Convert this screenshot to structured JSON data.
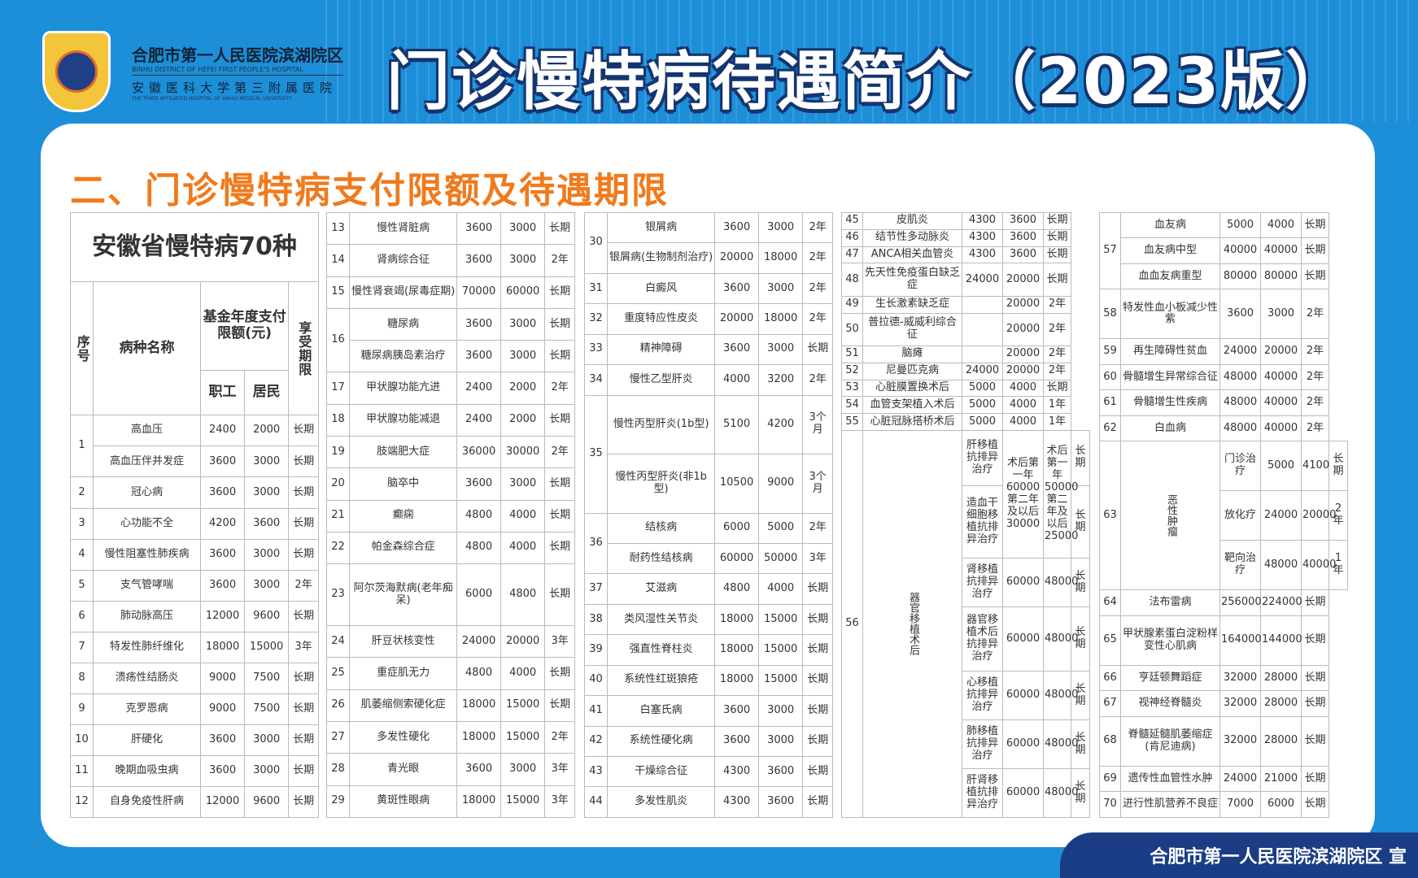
{
  "header": {
    "hospital_name": "合肥市第一人民医院滨湖院区",
    "hospital_name_en": "BINHU DISTRICT OF HEFEI FIRST PEOPLE'S HOSPITAL",
    "affiliation": "安徽医科大学第三附属医院",
    "affiliation_en": "THE THIRD AFFILIATED HOSPITAL OF ANHUI MEDICAL UNIVERSITY",
    "logo_text": "合肥市第一人民医院",
    "title": "门诊慢特病待遇简介（2023版）"
  },
  "section_title": "二、门诊慢特病支付限额及待遇期限",
  "table_title": "安徽省慢特病70种",
  "columns": {
    "no": "序号",
    "name": "病种名称",
    "limit": "基金年度支付限额(元)",
    "employee": "职工",
    "resident": "居民",
    "period": "享受期限"
  },
  "panels": [
    [
      {
        "no": "1",
        "items": [
          {
            "name": "高血压",
            "emp": "2400",
            "res": "2000",
            "period": "长期"
          },
          {
            "name": "高血压伴并发症",
            "emp": "3600",
            "res": "3000",
            "period": "长期"
          }
        ]
      },
      {
        "no": "2",
        "name": "冠心病",
        "emp": "3600",
        "res": "3000",
        "period": "长期"
      },
      {
        "no": "3",
        "name": "心功能不全",
        "emp": "4200",
        "res": "3600",
        "period": "长期"
      },
      {
        "no": "4",
        "name": "慢性阻塞性肺疾病",
        "emp": "3600",
        "res": "3000",
        "period": "长期"
      },
      {
        "no": "5",
        "name": "支气管哮喘",
        "emp": "3600",
        "res": "3000",
        "period": "2年"
      },
      {
        "no": "6",
        "name": "肺动脉高压",
        "emp": "12000",
        "res": "9600",
        "period": "长期"
      },
      {
        "no": "7",
        "name": "特发性肺纤维化",
        "emp": "18000",
        "res": "15000",
        "period": "3年"
      },
      {
        "no": "8",
        "name": "溃疡性结肠炎",
        "emp": "9000",
        "res": "7500",
        "period": "长期"
      },
      {
        "no": "9",
        "name": "克罗恩病",
        "emp": "9000",
        "res": "7500",
        "period": "长期"
      },
      {
        "no": "10",
        "name": "肝硬化",
        "emp": "3600",
        "res": "3000",
        "period": "长期"
      },
      {
        "no": "11",
        "name": "晚期血吸虫病",
        "emp": "3600",
        "res": "3000",
        "period": "长期"
      },
      {
        "no": "12",
        "name": "自身免疫性肝病",
        "emp": "12000",
        "res": "9600",
        "period": "长期"
      }
    ],
    [
      {
        "no": "13",
        "name": "慢性肾脏病",
        "emp": "3600",
        "res": "3000",
        "period": "长期"
      },
      {
        "no": "14",
        "name": "肾病综合征",
        "emp": "3600",
        "res": "3000",
        "period": "2年"
      },
      {
        "no": "15",
        "name": "慢性肾衰竭(尿毒症期)",
        "emp": "70000",
        "res": "60000",
        "period": "长期"
      },
      {
        "no": "16",
        "items": [
          {
            "name": "糖尿病",
            "emp": "3600",
            "res": "3000",
            "period": "长期"
          },
          {
            "name": "糖尿病胰岛素治疗",
            "emp": "3600",
            "res": "3000",
            "period": "长期"
          }
        ]
      },
      {
        "no": "17",
        "name": "甲状腺功能亢进",
        "emp": "2400",
        "res": "2000",
        "period": "2年"
      },
      {
        "no": "18",
        "name": "甲状腺功能减退",
        "emp": "2400",
        "res": "2000",
        "period": "长期"
      },
      {
        "no": "19",
        "name": "肢端肥大症",
        "emp": "36000",
        "res": "30000",
        "period": "2年"
      },
      {
        "no": "20",
        "name": "脑卒中",
        "emp": "3600",
        "res": "3000",
        "period": "长期"
      },
      {
        "no": "21",
        "name": "癫痫",
        "emp": "4800",
        "res": "4000",
        "period": "长期"
      },
      {
        "no": "22",
        "name": "帕金森综合症",
        "emp": "4800",
        "res": "4000",
        "period": "长期"
      },
      {
        "no": "23",
        "name": "阿尔茨海默病(老年痴呆)",
        "emp": "6000",
        "res": "4800",
        "period": "长期"
      },
      {
        "no": "24",
        "name": "肝豆状核变性",
        "emp": "24000",
        "res": "20000",
        "period": "3年"
      },
      {
        "no": "25",
        "name": "重症肌无力",
        "emp": "4800",
        "res": "4000",
        "period": "长期"
      },
      {
        "no": "26",
        "name": "肌萎缩侧索硬化症",
        "emp": "18000",
        "res": "15000",
        "period": "长期"
      },
      {
        "no": "27",
        "name": "多发性硬化",
        "emp": "18000",
        "res": "15000",
        "period": "2年"
      },
      {
        "no": "28",
        "name": "青光眼",
        "emp": "3600",
        "res": "3000",
        "period": "3年"
      },
      {
        "no": "29",
        "name": "黄斑性眼病",
        "emp": "18000",
        "res": "15000",
        "period": "3年"
      }
    ],
    [
      {
        "no": "30",
        "items": [
          {
            "name": "银屑病",
            "emp": "3600",
            "res": "3000",
            "period": "2年"
          },
          {
            "name": "银屑病(生物制剂治疗)",
            "emp": "20000",
            "res": "18000",
            "period": "2年"
          }
        ]
      },
      {
        "no": "31",
        "name": "白癜风",
        "emp": "3600",
        "res": "3000",
        "period": "2年"
      },
      {
        "no": "32",
        "name": "重度特应性皮炎",
        "emp": "20000",
        "res": "18000",
        "period": "2年"
      },
      {
        "no": "33",
        "name": "精神障碍",
        "emp": "3600",
        "res": "3000",
        "period": "长期"
      },
      {
        "no": "34",
        "name": "慢性乙型肝炎",
        "emp": "4000",
        "res": "3200",
        "period": "2年"
      },
      {
        "no": "35",
        "items": [
          {
            "name": "慢性丙型肝炎(1b型)",
            "emp": "5100",
            "res": "4200",
            "period": "3个月"
          },
          {
            "name": "慢性丙型肝炎(非1b型)",
            "emp": "10500",
            "res": "9000",
            "period": "3个月"
          }
        ]
      },
      {
        "no": "36",
        "items": [
          {
            "name": "结核病",
            "emp": "6000",
            "res": "5000",
            "period": "2年"
          },
          {
            "name": "耐药性结核病",
            "emp": "60000",
            "res": "50000",
            "period": "3年"
          }
        ]
      },
      {
        "no": "37",
        "name": "艾滋病",
        "emp": "4800",
        "res": "4000",
        "period": "长期"
      },
      {
        "no": "38",
        "name": "类风湿性关节炎",
        "emp": "18000",
        "res": "15000",
        "period": "长期"
      },
      {
        "no": "39",
        "name": "强直性脊柱炎",
        "emp": "18000",
        "res": "15000",
        "period": "长期"
      },
      {
        "no": "40",
        "name": "系统性红斑狼疮",
        "emp": "18000",
        "res": "15000",
        "period": "长期"
      },
      {
        "no": "41",
        "name": "白塞氏病",
        "emp": "3600",
        "res": "3000",
        "period": "长期"
      },
      {
        "no": "42",
        "name": "系统性硬化病",
        "emp": "3600",
        "res": "3000",
        "period": "长期"
      },
      {
        "no": "43",
        "name": "干燥综合征",
        "emp": "4300",
        "res": "3600",
        "period": "长期"
      },
      {
        "no": "44",
        "name": "多发性肌炎",
        "emp": "4300",
        "res": "3600",
        "period": "长期"
      }
    ],
    [
      {
        "no": "45",
        "name": "皮肌炎",
        "emp": "4300",
        "res": "3600",
        "period": "长期"
      },
      {
        "no": "46",
        "name": "结节性多动脉炎",
        "emp": "4300",
        "res": "3600",
        "period": "长期"
      },
      {
        "no": "47",
        "name": "ANCA相关血管炎",
        "emp": "4300",
        "res": "3600",
        "period": "长期"
      },
      {
        "no": "48",
        "name": "先天性免疫蛋白缺乏症",
        "emp": "24000",
        "res": "20000",
        "period": "长期"
      },
      {
        "no": "49",
        "name": "生长激素缺乏症",
        "emp": "",
        "res": "20000",
        "period": "2年"
      },
      {
        "no": "50",
        "name": "普拉德-威威利综合征",
        "emp": "",
        "res": "20000",
        "period": "2年"
      },
      {
        "no": "51",
        "name": "脑瘫",
        "emp": "",
        "res": "20000",
        "period": "2年"
      },
      {
        "no": "52",
        "name": "尼曼匹克病",
        "emp": "24000",
        "res": "20000",
        "period": "2年"
      },
      {
        "no": "53",
        "name": "心脏膜置换术后",
        "emp": "5000",
        "res": "4000",
        "period": "长期"
      },
      {
        "no": "54",
        "name": "血管支架植入术后",
        "emp": "5000",
        "res": "4000",
        "period": "1年"
      },
      {
        "no": "55",
        "name": "心脏冠脉搭桥术后",
        "emp": "5000",
        "res": "4000",
        "period": "1年"
      },
      {
        "no": "56",
        "group": "器官移植术后",
        "items": [
          {
            "name": "肝移植抗排异治疗",
            "emp": "术后第一年60000第二年及以后30000",
            "res": "术后第一年50000第二年及以后25000",
            "period": "长期"
          },
          {
            "name": "造血干细胞移植抗排异治疗",
            "emp": null,
            "res": null,
            "period": "长期"
          },
          {
            "name": "肾移植抗排异治疗",
            "emp": "60000",
            "res": "48000",
            "period": "长期"
          },
          {
            "name": "器官移植术后抗排异治疗",
            "emp": "60000",
            "res": "48000",
            "period": "长期"
          },
          {
            "name": "心移植抗排异治疗",
            "emp": "60000",
            "res": "48000",
            "period": "长期"
          },
          {
            "name": "肺移植抗排异治疗",
            "emp": "60000",
            "res": "48000",
            "period": "长期"
          },
          {
            "name": "肝肾移植抗排异治疗",
            "emp": "60000",
            "res": "48000",
            "period": "长期"
          }
        ]
      }
    ],
    [
      {
        "no": "57",
        "items": [
          {
            "name": "血友病",
            "emp": "5000",
            "res": "4000",
            "period": "长期"
          },
          {
            "name": "血友病中型",
            "emp": "40000",
            "res": "40000",
            "period": "长期"
          },
          {
            "name": "血血友病重型",
            "emp": "80000",
            "res": "80000",
            "period": "长期"
          }
        ]
      },
      {
        "no": "58",
        "name": "特发性血小板减少性紫",
        "emp": "3600",
        "res": "3000",
        "period": "2年"
      },
      {
        "no": "59",
        "name": "再生障碍性贫血",
        "emp": "24000",
        "res": "20000",
        "period": "2年"
      },
      {
        "no": "60",
        "name": "骨髓增生异常综合征",
        "emp": "48000",
        "res": "40000",
        "period": "2年"
      },
      {
        "no": "61",
        "name": "骨髓增生性疾病",
        "emp": "48000",
        "res": "40000",
        "period": "2年"
      },
      {
        "no": "62",
        "name": "白血病",
        "emp": "48000",
        "res": "40000",
        "period": "2年"
      },
      {
        "no": "63",
        "group": "恶性肿瘤",
        "items": [
          {
            "name": "门诊治疗",
            "emp": "5000",
            "res": "4100",
            "period": "长期"
          },
          {
            "name": "放化疗",
            "emp": "24000",
            "res": "20000",
            "period": "2年"
          },
          {
            "name": "靶向治疗",
            "emp": "48000",
            "res": "40000",
            "period": "1年"
          }
        ]
      },
      {
        "no": "64",
        "name": "法布雷病",
        "emp": "256000",
        "res": "224000",
        "period": "长期"
      },
      {
        "no": "65",
        "name": "甲状腺素蛋白淀粉样变性心肌病",
        "emp": "164000",
        "res": "144000",
        "period": "长期"
      },
      {
        "no": "66",
        "name": "亨廷顿舞蹈症",
        "emp": "32000",
        "res": "28000",
        "period": "长期"
      },
      {
        "no": "67",
        "name": "视神经脊髓炎",
        "emp": "32000",
        "res": "28000",
        "period": "长期"
      },
      {
        "no": "68",
        "name": "脊髓延髓肌萎缩症(肯尼迪病)",
        "emp": "32000",
        "res": "28000",
        "period": "长期"
      },
      {
        "no": "69",
        "name": "遗传性血管性水肿",
        "emp": "24000",
        "res": "21000",
        "period": "长期"
      },
      {
        "no": "70",
        "name": "进行性肌营养不良症",
        "emp": "7000",
        "res": "6000",
        "period": "长期"
      }
    ]
  ],
  "footer": "合肥市第一人民医院滨湖院区 宣"
}
